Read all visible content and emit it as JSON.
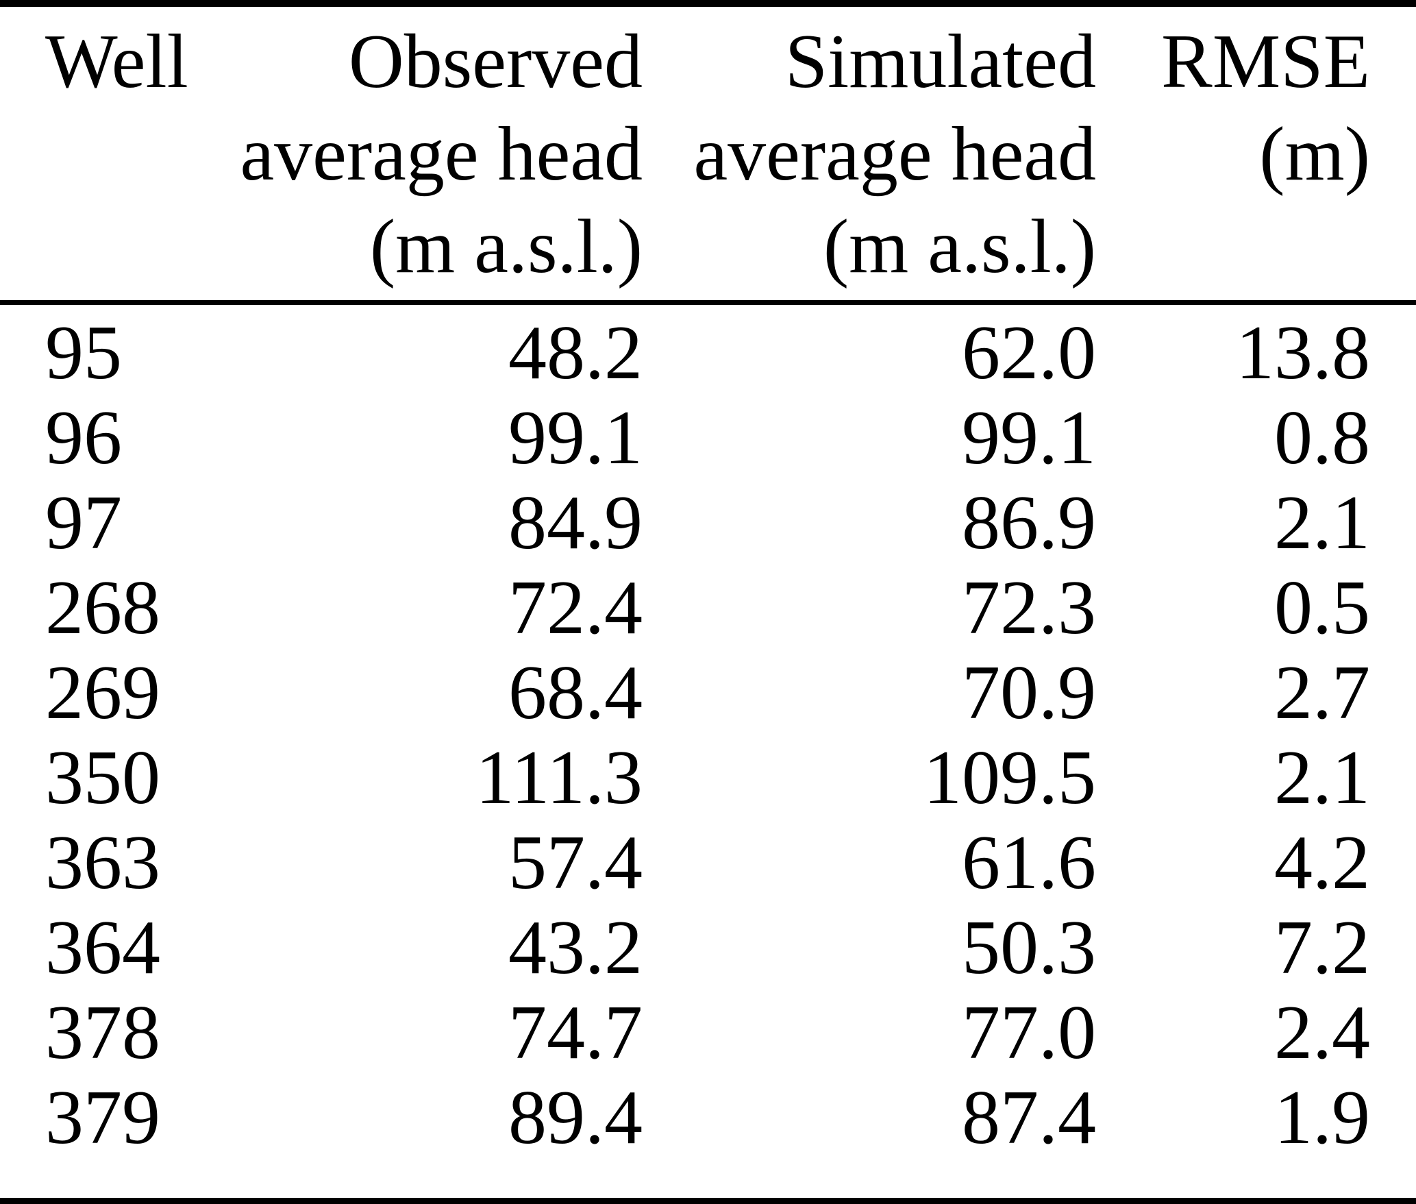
{
  "table": {
    "columns": [
      {
        "id": "well",
        "lines": [
          "Well"
        ]
      },
      {
        "id": "observed",
        "lines": [
          "Observed",
          "average head",
          "(m a.s.l.)"
        ]
      },
      {
        "id": "simulated",
        "lines": [
          "Simulated",
          "average head",
          "(m a.s.l.)"
        ]
      },
      {
        "id": "rmse",
        "lines": [
          "RMSE",
          "(m)"
        ]
      }
    ],
    "rows": [
      {
        "well": "95",
        "observed": "48.2",
        "simulated": "62.0",
        "rmse": "13.8"
      },
      {
        "well": "96",
        "observed": "99.1",
        "simulated": "99.1",
        "rmse": "0.8"
      },
      {
        "well": "97",
        "observed": "84.9",
        "simulated": "86.9",
        "rmse": "2.1"
      },
      {
        "well": "268",
        "observed": "72.4",
        "simulated": "72.3",
        "rmse": "0.5"
      },
      {
        "well": "269",
        "observed": "68.4",
        "simulated": "70.9",
        "rmse": "2.7"
      },
      {
        "well": "350",
        "observed": "111.3",
        "simulated": "109.5",
        "rmse": "2.1"
      },
      {
        "well": "363",
        "observed": "57.4",
        "simulated": "61.6",
        "rmse": "4.2"
      },
      {
        "well": "364",
        "observed": "43.2",
        "simulated": "50.3",
        "rmse": "7.2"
      },
      {
        "well": "378",
        "observed": "74.7",
        "simulated": "77.0",
        "rmse": "2.4"
      },
      {
        "well": "379",
        "observed": "89.4",
        "simulated": "87.4",
        "rmse": "1.9"
      }
    ]
  },
  "colors": {
    "text": "#000000",
    "background": "#ffffff",
    "rule": "#000000"
  },
  "chart_data": {
    "type": "table",
    "columns": [
      "Well",
      "Observed average head (m a.s.l.)",
      "Simulated average head (m a.s.l.)",
      "RMSE (m)"
    ],
    "rows": [
      [
        "95",
        48.2,
        62.0,
        13.8
      ],
      [
        "96",
        99.1,
        99.1,
        0.8
      ],
      [
        "97",
        84.9,
        86.9,
        2.1
      ],
      [
        "268",
        72.4,
        72.3,
        0.5
      ],
      [
        "269",
        68.4,
        70.9,
        2.7
      ],
      [
        "350",
        111.3,
        109.5,
        2.1
      ],
      [
        "363",
        57.4,
        61.6,
        4.2
      ],
      [
        "364",
        43.2,
        50.3,
        7.2
      ],
      [
        "378",
        74.7,
        77.0,
        2.4
      ],
      [
        "379",
        89.4,
        87.4,
        1.9
      ]
    ]
  }
}
